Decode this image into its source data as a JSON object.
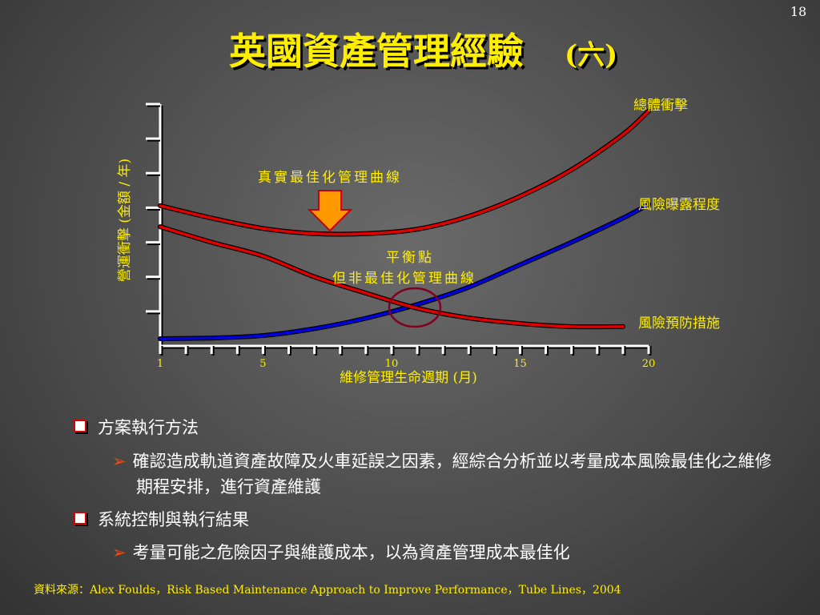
{
  "slide_number": "18",
  "title": "英國資產管理經驗",
  "title_suffix": "(六)",
  "chart_data": {
    "type": "line",
    "x": [
      1,
      3,
      5,
      7,
      9,
      11,
      13,
      15,
      17,
      19,
      20
    ],
    "xlim": [
      1,
      20
    ],
    "xticks": [
      1,
      5,
      10,
      15,
      20
    ],
    "ylim": [
      0,
      7
    ],
    "xlabel": "維修管理生命週期 (月)",
    "ylabel": "營運衝擊 (金額 / 年)",
    "series": [
      {
        "name": "總體衝擊",
        "color": "#e00000",
        "values": [
          4.06,
          3.7,
          3.4,
          3.25,
          3.25,
          3.38,
          3.75,
          4.33,
          5.1,
          6.12,
          6.8
        ]
      },
      {
        "name": "風險曝露程度",
        "color": "#0000e0",
        "values": [
          0.21,
          0.23,
          0.3,
          0.5,
          0.8,
          1.2,
          1.7,
          2.35,
          3.0,
          3.7,
          4.1
        ]
      },
      {
        "name": "風險預防措施",
        "color": "#e00000",
        "values": [
          3.45,
          3.0,
          2.6,
          2.0,
          1.53,
          1.09,
          0.81,
          0.65,
          0.56,
          0.56,
          null
        ]
      }
    ],
    "annotations": [
      "真實最佳化管理曲線",
      "平衡點",
      "但非最佳化管理曲線"
    ]
  },
  "bullets": [
    {
      "text": "方案執行方法",
      "subs": [
        "確認造成軌道資產故障及火車延誤之因素，經綜合分析並以考量成本風險最佳化之維修期程安排，進行資產維護"
      ]
    },
    {
      "text": "系統控制與執行結果",
      "subs": [
        "考量可能之危險因子與維護成本，以為資產管理成本最佳化"
      ]
    }
  ],
  "source": "資料來源：Alex Foulds，Risk Based Maintenance Approach to Improve Performance，Tube Lines，2004"
}
